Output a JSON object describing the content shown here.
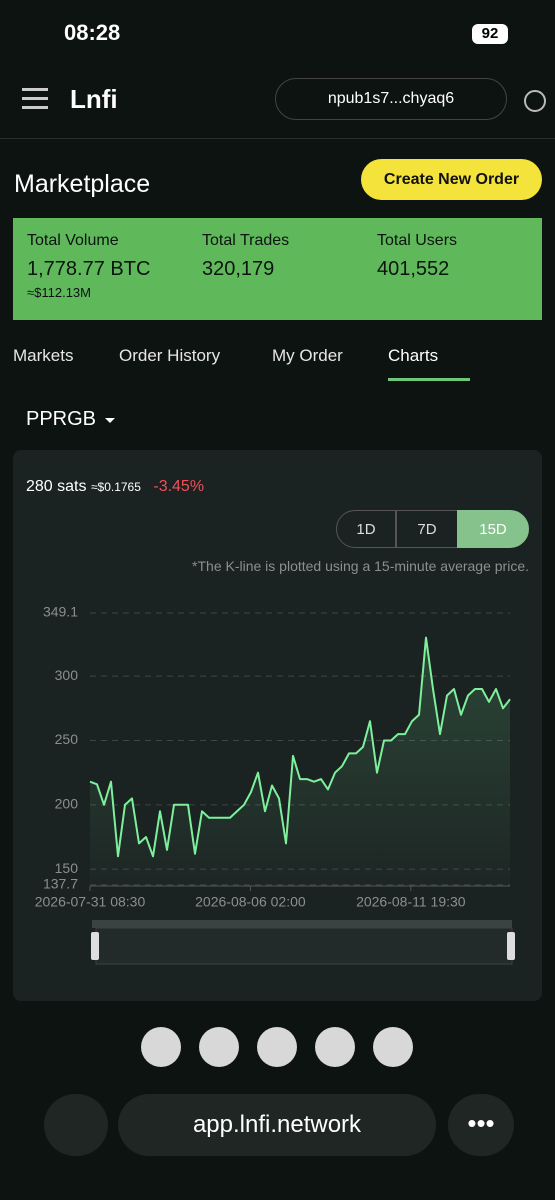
{
  "status_bar": {
    "time": "08:28",
    "battery": "92"
  },
  "header": {
    "logo": "Lnfi",
    "account": "npub1s7...chyaq6"
  },
  "page": {
    "title": "Marketplace",
    "button": "Create New Order"
  },
  "stats": [
    {
      "label": "Total Volume",
      "value": "1,778.77 BTC",
      "sub": "≈$112.13M"
    },
    {
      "label": "Total Trades",
      "value": "320,179"
    },
    {
      "label": "Total Users",
      "value": "401,552"
    }
  ],
  "tabs": [
    "Markets",
    "Order History",
    "My Order",
    "Charts"
  ],
  "token": "PPRGB",
  "price": {
    "value": "280 sats",
    "usd": "≈$0.1765",
    "change": "-3.45%"
  },
  "ranges": [
    "1D",
    "7D",
    "15D"
  ],
  "note": "*The K-line is plotted using a 15-minute average price.",
  "chart_data": {
    "type": "line",
    "color": "#7ef09c",
    "grid": true,
    "x": [
      "2026-07-31 08:30",
      "2026-07-31 14:30",
      "2026-07-31 20:30",
      "2026-08-01 02:30",
      "2026-08-01 08:30",
      "2026-08-01 14:30",
      "2026-08-01 20:30",
      "2026-08-02 02:30",
      "2026-08-02 08:30",
      "2026-08-02 14:30",
      "2026-08-02 20:30",
      "2026-08-03 02:30",
      "2026-08-03 08:30",
      "2026-08-03 14:30",
      "2026-08-03 20:30",
      "2026-08-04 02:30",
      "2026-08-04 08:30",
      "2026-08-04 14:30",
      "2026-08-04 20:30",
      "2026-08-05 02:30",
      "2026-08-05 08:30",
      "2026-08-05 14:30",
      "2026-08-05 20:30",
      "2026-08-06 02:30",
      "2026-08-06 08:30",
      "2026-08-06 14:30",
      "2026-08-06 20:30",
      "2026-08-07 02:30",
      "2026-08-07 08:30",
      "2026-08-07 14:30",
      "2026-08-07 20:30",
      "2026-08-08 02:30",
      "2026-08-08 08:30",
      "2026-08-08 14:30",
      "2026-08-08 20:30",
      "2026-08-09 02:30",
      "2026-08-09 08:30",
      "2026-08-09 14:30",
      "2026-08-09 20:30",
      "2026-08-10 02:30",
      "2026-08-10 08:30",
      "2026-08-10 14:30",
      "2026-08-10 20:30",
      "2026-08-11 02:30",
      "2026-08-11 08:30",
      "2026-08-11 14:30",
      "2026-08-11 20:30",
      "2026-08-12 02:30",
      "2026-08-12 08:30",
      "2026-08-12 14:30",
      "2026-08-12 20:30",
      "2026-08-13 02:30",
      "2026-08-13 08:30",
      "2026-08-13 14:30",
      "2026-08-13 20:30",
      "2026-08-14 02:30",
      "2026-08-14 08:30",
      "2026-08-14 14:30",
      "2026-08-14 20:30",
      "2026-08-15 02:30",
      "2026-08-15 08:30"
    ],
    "values": [
      218,
      216,
      200,
      218,
      160,
      200,
      205,
      170,
      175,
      160,
      195,
      165,
      200,
      200,
      200,
      162,
      195,
      190,
      190,
      190,
      190,
      195,
      200,
      210,
      225,
      195,
      215,
      205,
      170,
      238,
      220,
      220,
      218,
      220,
      212,
      225,
      230,
      240,
      240,
      245,
      265,
      225,
      250,
      250,
      255,
      255,
      265,
      270,
      330,
      290,
      255,
      285,
      290,
      270,
      285,
      290,
      290,
      280,
      290,
      275,
      282
    ],
    "xlim": [
      "2026-07-31 08:30",
      "2026-08-15 08:30"
    ],
    "xticks": [
      "2026-07-31 08:30",
      "2026-08-06 02:00",
      "2026-08-11 19:30"
    ],
    "ylim": [
      137.7,
      349.1
    ],
    "yticks": [
      137.7,
      150,
      200,
      250,
      300,
      349.1
    ]
  },
  "browser": {
    "url": "app.lnfi.network"
  }
}
